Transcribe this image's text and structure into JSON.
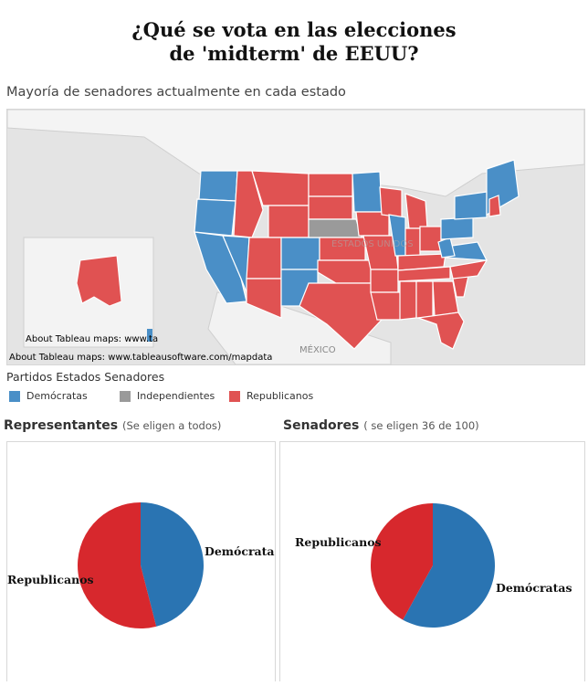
{
  "page": {
    "title_line1": "¿Qué se vota en las elecciones",
    "title_line2": "de 'midterm' de EEUU?"
  },
  "map": {
    "title": "Mayoría de senadores actualmente en cada estado",
    "attribution_inset": "About Tableau maps: www.ta",
    "attribution": "About Tableau maps: www.tableausoftware.com/mapdata",
    "label_mexico": "MÉXICO",
    "label_usa": "ESTADOS UNIDOS",
    "colors": {
      "land": "#f2f2f2",
      "water": "#e4e4e4",
      "border": "#c8c8c8"
    }
  },
  "legend": {
    "title": "Partidos Estados Senadores",
    "items": [
      {
        "label": "Demócratas",
        "color": "#4a8fc7"
      },
      {
        "label": "Independientes",
        "color": "#9a9a9a"
      },
      {
        "label": "Republicanos",
        "color": "#e05252"
      }
    ]
  },
  "panels": {
    "representantes": {
      "title": "Representantes",
      "subtitle": "(Se eligen a todos)"
    },
    "senadores": {
      "title": "Senadores",
      "subtitle": "( se eligen 36 de 100)"
    }
  },
  "chart_data": [
    {
      "type": "pie",
      "title": "Representantes",
      "categories": [
        "Demócratas",
        "Republicanos"
      ],
      "values": [
        46,
        54
      ],
      "colors": [
        "#2a74b2",
        "#d7282d"
      ]
    },
    {
      "type": "pie",
      "title": "Senadores",
      "categories": [
        "Demócratas",
        "Republicanos"
      ],
      "values": [
        58,
        42
      ],
      "colors": [
        "#2a74b2",
        "#d7282d"
      ]
    }
  ]
}
